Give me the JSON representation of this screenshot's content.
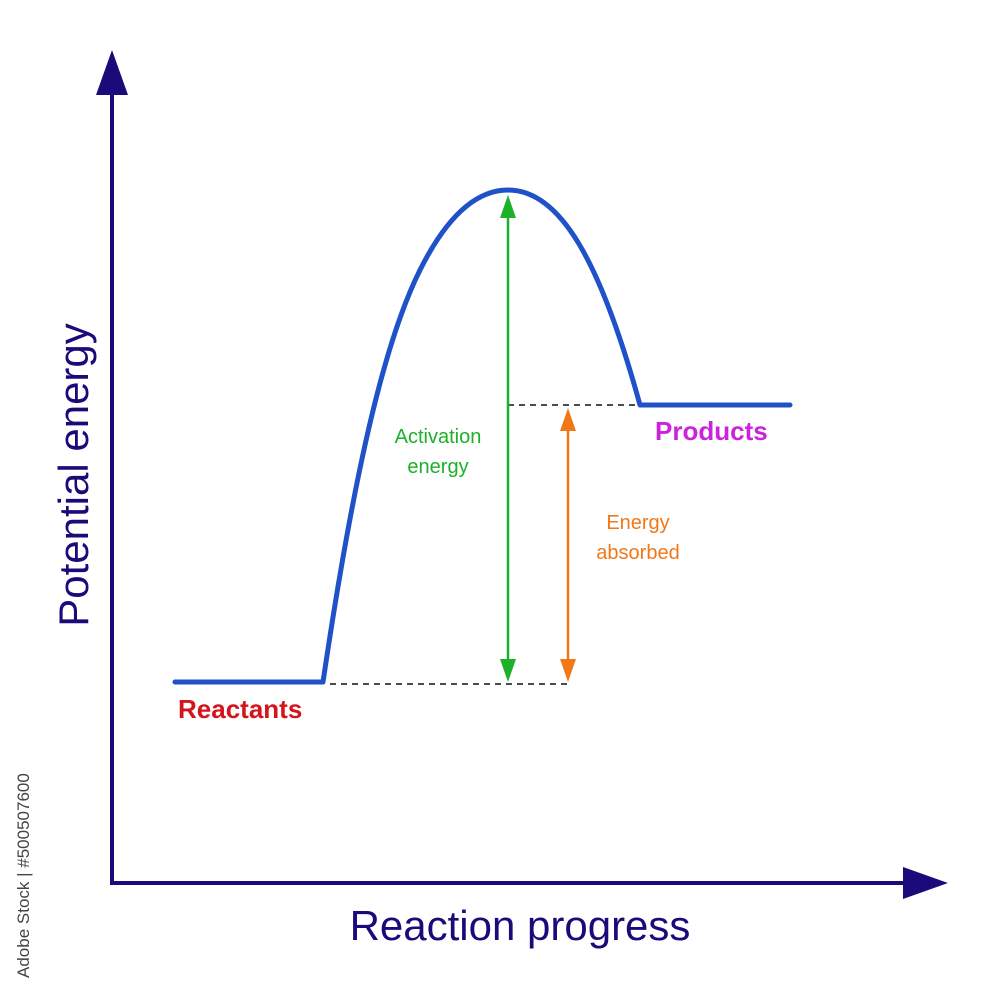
{
  "axes": {
    "y_title": "Potential energy",
    "x_title": "Reaction progress"
  },
  "labels": {
    "reactants": "Reactants",
    "products": "Products",
    "activation_line1": "Activation",
    "activation_line2": "energy",
    "absorbed_line1": "Energy",
    "absorbed_line2": "absorbed"
  },
  "watermark": "Adobe Stock | #500507600",
  "colors": {
    "axis": "#1a0a7a",
    "curve": "#1f52c9",
    "reactants": "#d4141c",
    "products": "#cc22dd",
    "activation": "#1fb02a",
    "absorbed": "#f07818",
    "dashed": "#111111",
    "watermark": "#444444"
  }
}
